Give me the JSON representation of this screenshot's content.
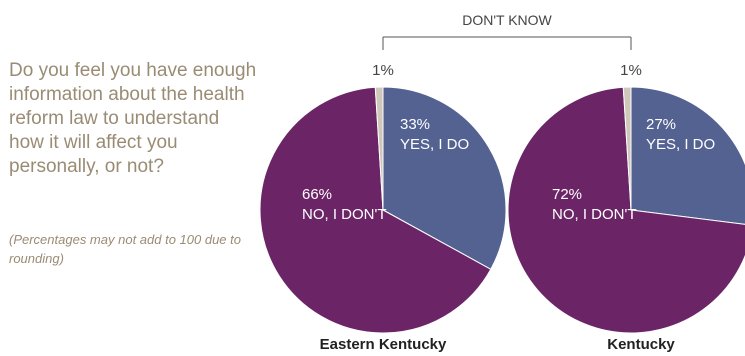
{
  "question": {
    "text": "Do you feel you have enough information about the health reform law to understand how it will affect you personally, or not?",
    "note": "(Percentages may not add to 100 due to rounding)"
  },
  "dont_know_label": "DON'T KNOW",
  "colors": {
    "yes": "#546291",
    "no": "#6b2567",
    "dont_know": "#cfc7b9"
  },
  "chart_data": [
    {
      "type": "pie",
      "title": "Eastern Kentucky",
      "slices": [
        {
          "label": "YES, I DO",
          "value": 33,
          "value_label": "33%",
          "color": "#546291"
        },
        {
          "label": "NO, I DON'T",
          "value": 66,
          "value_label": "66%",
          "color": "#6b2567"
        },
        {
          "label": "DON'T KNOW",
          "value": 1,
          "value_label": "1%",
          "color": "#cfc7b9"
        }
      ]
    },
    {
      "type": "pie",
      "title": "Kentucky",
      "slices": [
        {
          "label": "YES, I DO",
          "value": 27,
          "value_label": "27%",
          "color": "#546291"
        },
        {
          "label": "NO, I DON'T",
          "value": 72,
          "value_label": "72%",
          "color": "#6b2567"
        },
        {
          "label": "DON'T KNOW",
          "value": 1,
          "value_label": "1%",
          "color": "#cfc7b9"
        }
      ]
    }
  ]
}
